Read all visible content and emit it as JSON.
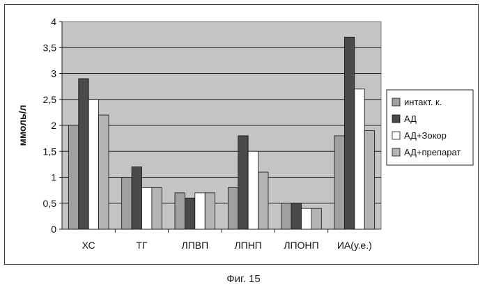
{
  "caption": "Фиг. 15",
  "chart_data": {
    "type": "bar",
    "categories": [
      "ХС",
      "ТГ",
      "ЛПВП",
      "ЛПНП",
      "ЛПОНП",
      "ИА(у.е.)"
    ],
    "series": [
      {
        "name": "интакт. к.",
        "values": [
          2.0,
          1.0,
          0.7,
          0.8,
          0.5,
          1.8
        ],
        "color": "#a0a0a0"
      },
      {
        "name": "АД",
        "values": [
          2.9,
          1.2,
          0.6,
          1.8,
          0.5,
          3.7
        ],
        "color": "#4a4a4a"
      },
      {
        "name": "АД+Зокор",
        "values": [
          2.5,
          0.8,
          0.7,
          1.5,
          0.4,
          2.7
        ],
        "color": "#ffffff"
      },
      {
        "name": "АД+препарат",
        "values": [
          2.2,
          0.8,
          0.7,
          1.1,
          0.4,
          1.9
        ],
        "color": "#b4b4b4"
      }
    ],
    "ylabel": "ммоль/л",
    "ylim": [
      0,
      4
    ],
    "yticks": [
      "0",
      "0,5",
      "1",
      "1,5",
      "2",
      "2,5",
      "3",
      "3,5",
      "4"
    ],
    "plot_background": "#c4c4c4",
    "grid": true,
    "legend_position": "right"
  }
}
